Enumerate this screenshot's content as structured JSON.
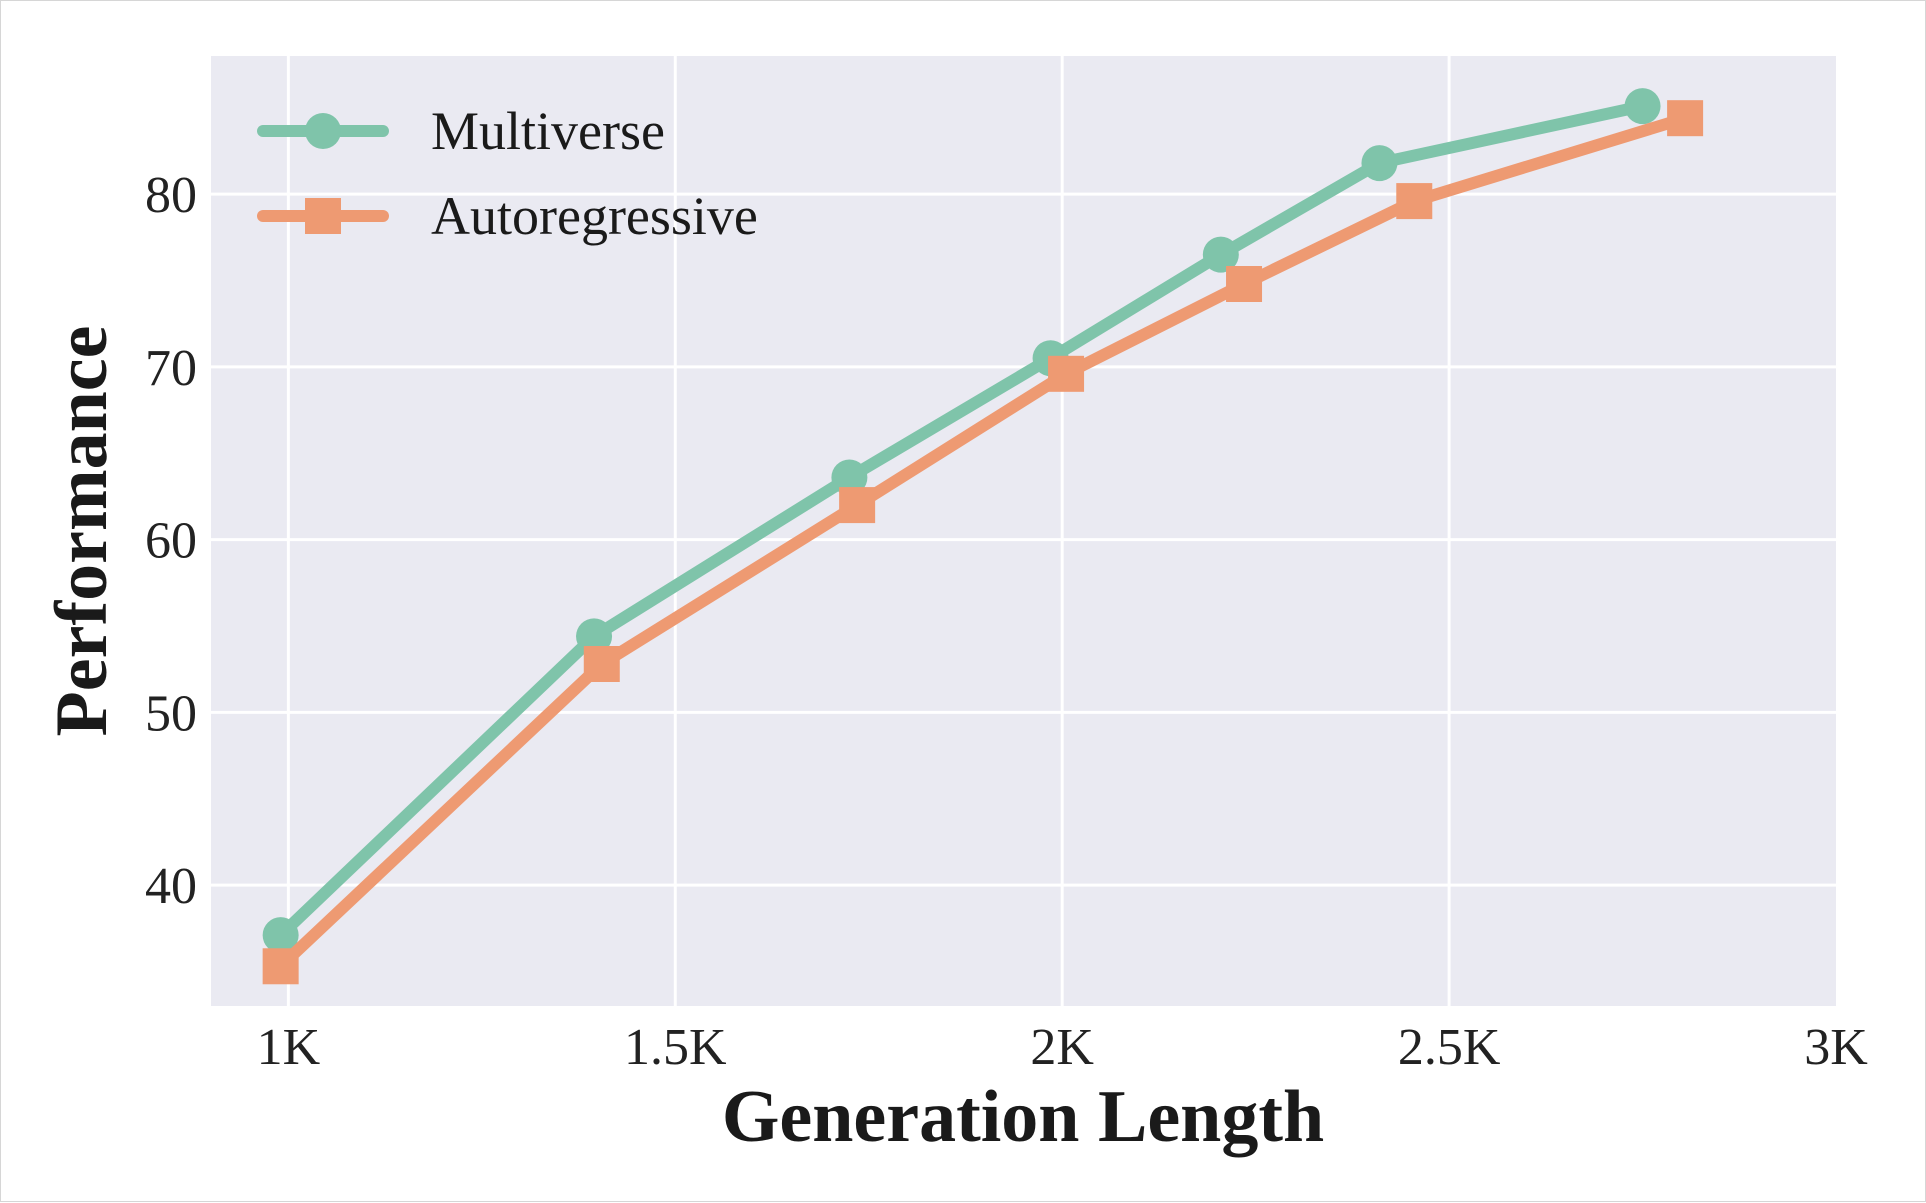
{
  "chart_data": {
    "type": "line",
    "xlabel": "Generation Length",
    "ylabel": "Performance",
    "xlim": [
      900,
      3000
    ],
    "ylim": [
      33,
      88
    ],
    "xticks": [
      {
        "value": 1000,
        "label": "1K"
      },
      {
        "value": 1500,
        "label": "1.5K"
      },
      {
        "value": 2000,
        "label": "2K"
      },
      {
        "value": 2500,
        "label": "2.5K"
      },
      {
        "value": 3000,
        "label": "3K"
      }
    ],
    "yticks": [
      {
        "value": 40,
        "label": "40"
      },
      {
        "value": 50,
        "label": "50"
      },
      {
        "value": 60,
        "label": "60"
      },
      {
        "value": 70,
        "label": "70"
      },
      {
        "value": 80,
        "label": "80"
      }
    ],
    "grid": true,
    "legend_position": "top-left",
    "background": "#eaeaf2",
    "series": [
      {
        "name": "Multiverse",
        "color": "#7fc4aa",
        "marker": "circle",
        "x": [
          990,
          1395,
          1725,
          1985,
          2205,
          2410,
          2750
        ],
        "y": [
          37.1,
          54.4,
          63.6,
          70.5,
          76.5,
          81.8,
          85.1
        ]
      },
      {
        "name": "Autoregressive",
        "color": "#ee9a72",
        "marker": "square",
        "x": [
          990,
          1405,
          1735,
          2005,
          2235,
          2455,
          2805
        ],
        "y": [
          35.3,
          52.8,
          62.0,
          69.6,
          74.8,
          79.6,
          84.4
        ]
      }
    ]
  }
}
